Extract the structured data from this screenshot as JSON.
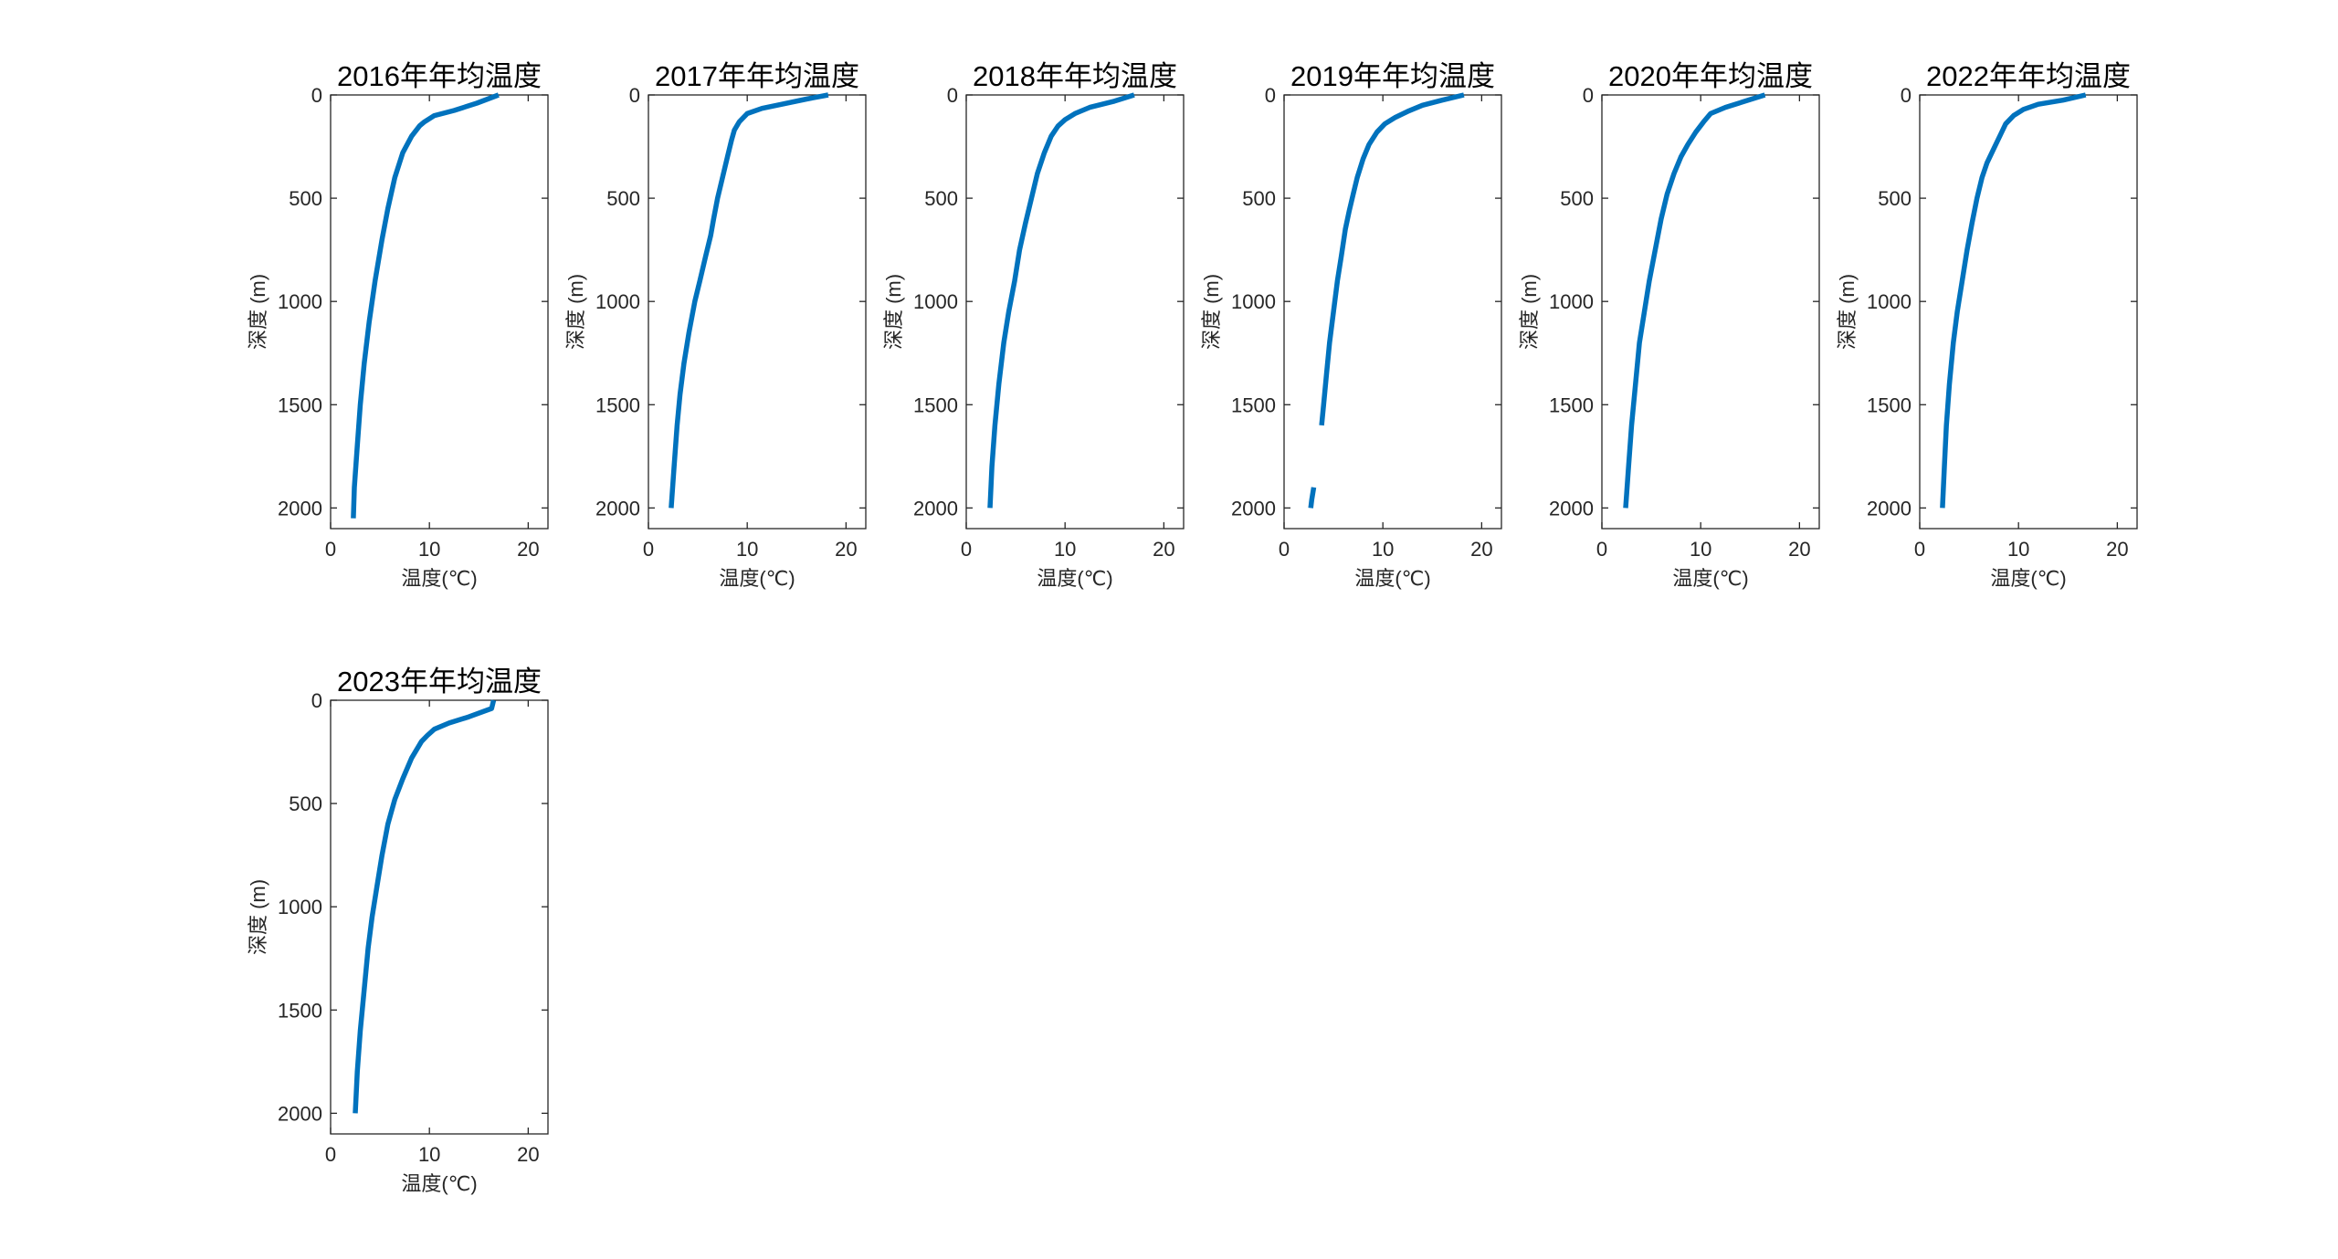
{
  "chart_data": [
    {
      "type": "line",
      "title": "2016年年均温度",
      "xlabel": "温度(℃)",
      "ylabel": "深度 (m)",
      "xlim": [
        0,
        22
      ],
      "ylim": [
        0,
        2100
      ],
      "y_reversed": true,
      "xticks": [
        0,
        10,
        20
      ],
      "yticks": [
        0,
        500,
        1000,
        1500,
        2000
      ],
      "grid": false,
      "series": [
        {
          "color": "#0072BD",
          "segments": [
            [
              [
                17.0,
                0
              ],
              [
                14.8,
                40
              ],
              [
                12.5,
                75
              ],
              [
                10.5,
                100
              ],
              [
                9.5,
                130
              ],
              [
                9.0,
                150
              ],
              [
                8.2,
                200
              ],
              [
                7.3,
                280
              ],
              [
                6.5,
                400
              ],
              [
                5.8,
                550
              ],
              [
                5.2,
                700
              ],
              [
                4.5,
                900
              ],
              [
                3.9,
                1100
              ],
              [
                3.4,
                1300
              ],
              [
                3.0,
                1500
              ],
              [
                2.7,
                1700
              ],
              [
                2.4,
                1900
              ],
              [
                2.3,
                2050
              ]
            ]
          ]
        }
      ]
    },
    {
      "type": "line",
      "title": "2017年年均温度",
      "xlabel": "温度(℃)",
      "ylabel": "深度 (m)",
      "xlim": [
        0,
        22
      ],
      "ylim": [
        0,
        2100
      ],
      "y_reversed": true,
      "xticks": [
        0,
        10,
        20
      ],
      "yticks": [
        0,
        500,
        1000,
        1500,
        2000
      ],
      "grid": false,
      "series": [
        {
          "color": "#0072BD",
          "segments": [
            [
              [
                18.2,
                0
              ],
              [
                16.0,
                20
              ],
              [
                13.5,
                45
              ],
              [
                11.5,
                65
              ],
              [
                10.0,
                90
              ],
              [
                9.2,
                130
              ],
              [
                8.7,
                170
              ],
              [
                8.4,
                220
              ],
              [
                8.0,
                300
              ],
              [
                7.5,
                400
              ],
              [
                7.0,
                500
              ],
              [
                6.6,
                600
              ],
              [
                6.3,
                680
              ],
              [
                5.8,
                780
              ],
              [
                5.2,
                900
              ],
              [
                4.7,
                1000
              ],
              [
                4.1,
                1150
              ],
              [
                3.6,
                1300
              ],
              [
                3.2,
                1450
              ],
              [
                2.9,
                1600
              ],
              [
                2.6,
                1800
              ],
              [
                2.3,
                2000
              ]
            ]
          ]
        }
      ]
    },
    {
      "type": "line",
      "title": "2018年年均温度",
      "xlabel": "温度(℃)",
      "ylabel": "深度 (m)",
      "xlim": [
        0,
        22
      ],
      "ylim": [
        0,
        2100
      ],
      "y_reversed": true,
      "xticks": [
        0,
        10,
        20
      ],
      "yticks": [
        0,
        500,
        1000,
        1500,
        2000
      ],
      "grid": false,
      "series": [
        {
          "color": "#0072BD",
          "segments": [
            [
              [
                17.0,
                0
              ],
              [
                15.0,
                30
              ],
              [
                12.5,
                60
              ],
              [
                11.0,
                90
              ],
              [
                10.0,
                120
              ],
              [
                9.3,
                150
              ],
              [
                8.6,
                200
              ],
              [
                7.9,
                280
              ],
              [
                7.2,
                380
              ],
              [
                6.6,
                500
              ],
              [
                6.0,
                620
              ],
              [
                5.4,
                750
              ],
              [
                4.9,
                900
              ],
              [
                4.3,
                1050
              ],
              [
                3.8,
                1200
              ],
              [
                3.3,
                1400
              ],
              [
                2.9,
                1600
              ],
              [
                2.6,
                1800
              ],
              [
                2.4,
                2000
              ]
            ]
          ]
        }
      ]
    },
    {
      "type": "line",
      "title": "2019年年均温度",
      "xlabel": "温度(℃)",
      "ylabel": "深度 (m)",
      "xlim": [
        0,
        22
      ],
      "ylim": [
        0,
        2100
      ],
      "y_reversed": true,
      "xticks": [
        0,
        10,
        20
      ],
      "yticks": [
        0,
        500,
        1000,
        1500,
        2000
      ],
      "grid": false,
      "series": [
        {
          "color": "#0072BD",
          "segments": [
            [
              [
                18.2,
                0
              ],
              [
                16.0,
                25
              ],
              [
                14.0,
                50
              ],
              [
                12.5,
                80
              ],
              [
                11.2,
                110
              ],
              [
                10.2,
                140
              ],
              [
                9.4,
                180
              ],
              [
                8.6,
                240
              ],
              [
                8.0,
                310
              ],
              [
                7.4,
                400
              ],
              [
                7.0,
                480
              ],
              [
                6.6,
                560
              ],
              [
                6.2,
                650
              ],
              [
                5.8,
                780
              ],
              [
                5.4,
                900
              ],
              [
                5.0,
                1050
              ],
              [
                4.6,
                1200
              ],
              [
                4.3,
                1350
              ],
              [
                4.0,
                1500
              ],
              [
                3.8,
                1600
              ]
            ],
            [
              [
                3.0,
                1900
              ],
              [
                2.8,
                1960
              ],
              [
                2.7,
                2000
              ]
            ]
          ]
        }
      ]
    },
    {
      "type": "line",
      "title": "2020年年均温度",
      "xlabel": "温度(℃)",
      "ylabel": "深度 (m)",
      "xlim": [
        0,
        22
      ],
      "ylim": [
        0,
        2100
      ],
      "y_reversed": true,
      "xticks": [
        0,
        10,
        20
      ],
      "yticks": [
        0,
        500,
        1000,
        1500,
        2000
      ],
      "grid": false,
      "series": [
        {
          "color": "#0072BD",
          "segments": [
            [
              [
                16.5,
                0
              ],
              [
                14.5,
                30
              ],
              [
                12.5,
                60
              ],
              [
                11.0,
                90
              ],
              [
                10.3,
                130
              ],
              [
                9.5,
                180
              ],
              [
                8.7,
                240
              ],
              [
                8.0,
                300
              ],
              [
                7.3,
                380
              ],
              [
                6.6,
                480
              ],
              [
                6.0,
                600
              ],
              [
                5.4,
                750
              ],
              [
                4.8,
                900
              ],
              [
                4.3,
                1050
              ],
              [
                3.8,
                1200
              ],
              [
                3.4,
                1400
              ],
              [
                3.0,
                1600
              ],
              [
                2.7,
                1800
              ],
              [
                2.4,
                2000
              ]
            ]
          ]
        }
      ]
    },
    {
      "type": "line",
      "title": "2022年年均温度",
      "xlabel": "温度(℃)",
      "ylabel": "深度 (m)",
      "xlim": [
        0,
        22
      ],
      "ylim": [
        0,
        2100
      ],
      "y_reversed": true,
      "xticks": [
        0,
        10,
        20
      ],
      "yticks": [
        0,
        500,
        1000,
        1500,
        2000
      ],
      "grid": false,
      "series": [
        {
          "color": "#0072BD",
          "segments": [
            [
              [
                16.8,
                0
              ],
              [
                14.5,
                25
              ],
              [
                12.0,
                45
              ],
              [
                10.5,
                70
              ],
              [
                9.5,
                100
              ],
              [
                8.7,
                140
              ],
              [
                8.2,
                190
              ],
              [
                7.5,
                260
              ],
              [
                6.8,
                330
              ],
              [
                6.3,
                400
              ],
              [
                5.8,
                500
              ],
              [
                5.3,
                620
              ],
              [
                4.8,
                750
              ],
              [
                4.3,
                900
              ],
              [
                3.8,
                1050
              ],
              [
                3.4,
                1200
              ],
              [
                3.0,
                1400
              ],
              [
                2.7,
                1600
              ],
              [
                2.5,
                1800
              ],
              [
                2.3,
                2000
              ]
            ]
          ]
        }
      ]
    },
    {
      "type": "line",
      "title": "2023年年均温度",
      "xlabel": "温度(℃)",
      "ylabel": "深度 (m)",
      "xlim": [
        0,
        22
      ],
      "ylim": [
        0,
        2100
      ],
      "y_reversed": true,
      "xticks": [
        0,
        10,
        20
      ],
      "yticks": [
        0,
        500,
        1000,
        1500,
        2000
      ],
      "grid": false,
      "series": [
        {
          "color": "#0072BD",
          "segments": [
            [
              [
                16.5,
                0
              ],
              [
                16.3,
                40
              ],
              [
                14.0,
                80
              ],
              [
                12.0,
                110
              ],
              [
                10.5,
                140
              ],
              [
                9.8,
                170
              ],
              [
                9.2,
                200
              ],
              [
                8.2,
                280
              ],
              [
                7.3,
                380
              ],
              [
                6.5,
                480
              ],
              [
                5.8,
                600
              ],
              [
                5.2,
                750
              ],
              [
                4.7,
                900
              ],
              [
                4.2,
                1050
              ],
              [
                3.8,
                1200
              ],
              [
                3.4,
                1400
              ],
              [
                3.0,
                1600
              ],
              [
                2.7,
                1800
              ],
              [
                2.5,
                2000
              ]
            ]
          ]
        }
      ]
    }
  ]
}
